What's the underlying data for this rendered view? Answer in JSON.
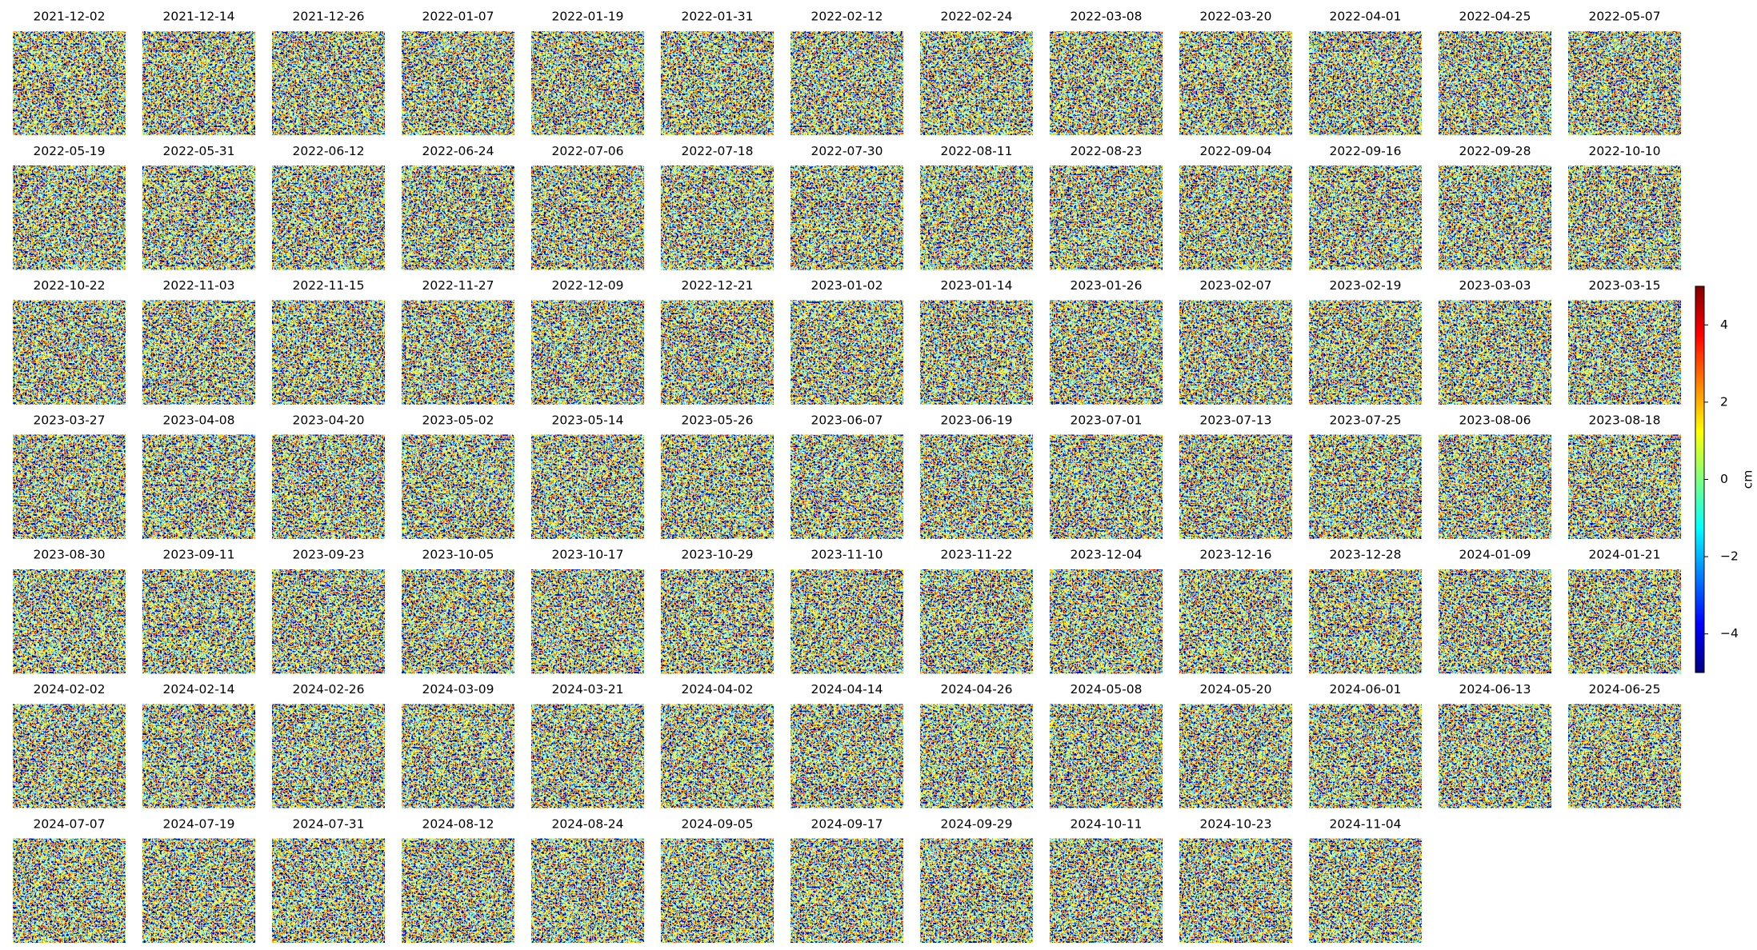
{
  "chart_data": {
    "type": "image_grid",
    "panels": [
      "2021-12-02",
      "2021-12-14",
      "2021-12-26",
      "2022-01-07",
      "2022-01-19",
      "2022-01-31",
      "2022-02-12",
      "2022-02-24",
      "2022-03-08",
      "2022-03-20",
      "2022-04-01",
      "2022-04-25",
      "2022-05-07",
      "2022-05-19",
      "2022-05-31",
      "2022-06-12",
      "2022-06-24",
      "2022-07-06",
      "2022-07-18",
      "2022-07-30",
      "2022-08-11",
      "2022-08-23",
      "2022-09-04",
      "2022-09-16",
      "2022-09-28",
      "2022-10-10",
      "2022-10-22",
      "2022-11-03",
      "2022-11-15",
      "2022-11-27",
      "2022-12-09",
      "2022-12-21",
      "2023-01-02",
      "2023-01-14",
      "2023-01-26",
      "2023-02-07",
      "2023-02-19",
      "2023-03-03",
      "2023-03-15",
      "2023-03-27",
      "2023-04-08",
      "2023-04-20",
      "2023-05-02",
      "2023-05-14",
      "2023-05-26",
      "2023-06-07",
      "2023-06-19",
      "2023-07-01",
      "2023-07-13",
      "2023-07-25",
      "2023-08-06",
      "2023-08-18",
      "2023-08-30",
      "2023-09-11",
      "2023-09-23",
      "2023-10-05",
      "2023-10-17",
      "2023-10-29",
      "2023-11-10",
      "2023-11-22",
      "2023-12-04",
      "2023-12-16",
      "2023-12-28",
      "2024-01-09",
      "2024-01-21",
      "2024-02-02",
      "2024-02-14",
      "2024-02-26",
      "2024-03-09",
      "2024-03-21",
      "2024-04-02",
      "2024-04-14",
      "2024-04-26",
      "2024-05-08",
      "2024-05-20",
      "2024-06-01",
      "2024-06-13",
      "2024-06-25",
      "2024-07-07",
      "2024-07-19",
      "2024-07-31",
      "2024-08-12",
      "2024-08-24",
      "2024-09-05",
      "2024-09-17",
      "2024-09-29",
      "2024-10-11",
      "2024-10-23",
      "2024-11-04"
    ],
    "colorbar": {
      "label": "cm",
      "lim": [
        -5,
        5
      ],
      "ticks": [
        {
          "value": -4,
          "label": "−4"
        },
        {
          "value": -2,
          "label": "−2"
        },
        0,
        2,
        4
      ],
      "colors": [
        "#00007f",
        "#0000ff",
        "#007fff",
        "#00ffff",
        "#7fff7f",
        "#ffff00",
        "#ff7f00",
        "#ff0000",
        "#7f0000"
      ]
    }
  }
}
